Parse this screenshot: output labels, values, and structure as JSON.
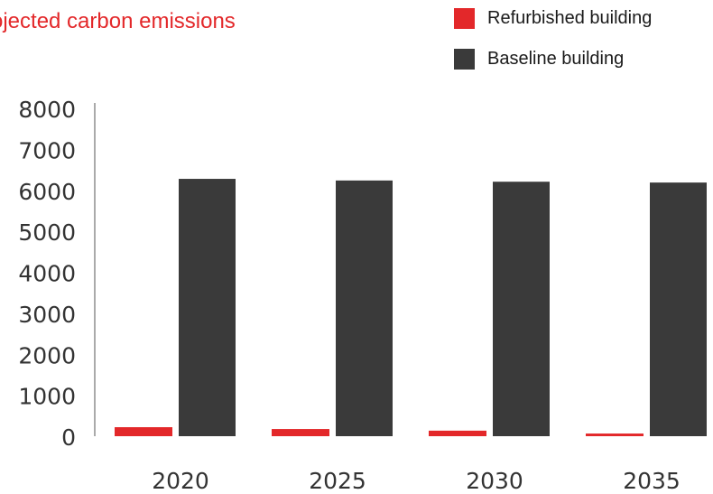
{
  "chart_data": {
    "type": "bar",
    "title": "ojected carbon emissions",
    "categories": [
      "2020",
      "2025",
      "2030",
      "2035"
    ],
    "series": [
      {
        "name": "Refurbished building",
        "color": "#e3282a",
        "values": [
          220,
          175,
          135,
          65
        ]
      },
      {
        "name": "Baseline building",
        "color": "#3a3a3a",
        "values": [
          6280,
          6240,
          6210,
          6190
        ]
      }
    ],
    "yticks": [
      "0",
      "1000",
      "2000",
      "3000",
      "4000",
      "5000",
      "6000",
      "7000",
      "8000"
    ],
    "ylim": [
      0,
      8000
    ],
    "legend_position": "top-right",
    "grid": false
  }
}
